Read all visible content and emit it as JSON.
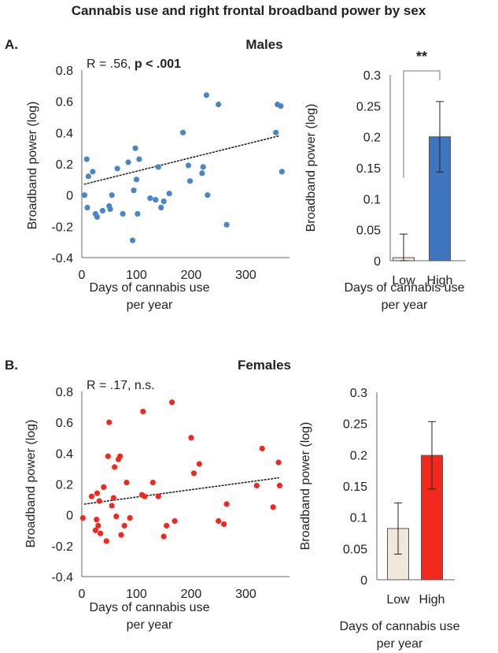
{
  "figure_title": "Cannabis use and right frontal broadband power by sex",
  "colors": {
    "male_point": "#4a86c6",
    "female_point": "#f0281e",
    "low_bar": "#f1e8dc",
    "male_high_bar": "#3f74bf",
    "female_high_bar": "#f0281e"
  },
  "chart_data": [
    {
      "type": "scatter",
      "panel": "A.",
      "title": "Males",
      "stat_plain": "R = .56, ",
      "stat_bold": "p < .001",
      "xlabel": [
        "Days of cannabis use",
        "per year"
      ],
      "ylabel": "Broadband power (log)",
      "xlim": [
        0,
        380
      ],
      "ylim": [
        -0.4,
        0.8
      ],
      "xticks": [
        "0",
        "100",
        "200",
        "300"
      ],
      "xtick_values": [
        0,
        100,
        200,
        300
      ],
      "yticks": [
        "-0.4",
        "-0.2",
        "0",
        "0.2",
        "0.4",
        "0.6",
        "0.8"
      ],
      "ytick_values": [
        -0.4,
        -0.2,
        0,
        0.2,
        0.4,
        0.6,
        0.8
      ],
      "trendline": {
        "x": [
          5,
          362
        ],
        "y": [
          0.07,
          0.38
        ]
      },
      "points": [
        [
          5,
          0.0
        ],
        [
          9,
          0.23
        ],
        [
          10,
          -0.08
        ],
        [
          12,
          0.12
        ],
        [
          20,
          0.15
        ],
        [
          25,
          -0.12
        ],
        [
          28,
          -0.14
        ],
        [
          38,
          -0.1
        ],
        [
          50,
          -0.07
        ],
        [
          52,
          -0.09
        ],
        [
          55,
          0.0
        ],
        [
          65,
          0.17
        ],
        [
          75,
          -0.12
        ],
        [
          85,
          0.21
        ],
        [
          93,
          -0.29
        ],
        [
          95,
          0.03
        ],
        [
          98,
          0.3
        ],
        [
          100,
          0.1
        ],
        [
          102,
          -0.12
        ],
        [
          105,
          0.23
        ],
        [
          125,
          -0.02
        ],
        [
          135,
          -0.03
        ],
        [
          140,
          0.18
        ],
        [
          145,
          -0.08
        ],
        [
          150,
          -0.04
        ],
        [
          160,
          0.01
        ],
        [
          185,
          0.4
        ],
        [
          195,
          0.19
        ],
        [
          198,
          0.09
        ],
        [
          220,
          0.14
        ],
        [
          222,
          0.18
        ],
        [
          228,
          0.64
        ],
        [
          230,
          0.0
        ],
        [
          250,
          0.58
        ],
        [
          265,
          -0.19
        ],
        [
          355,
          0.4
        ],
        [
          358,
          0.58
        ],
        [
          364,
          0.57
        ],
        [
          366,
          0.15
        ]
      ]
    },
    {
      "type": "bar",
      "panel": "A.",
      "significance": "**",
      "categories": [
        "Low",
        "High"
      ],
      "values": [
        0.005,
        0.2
      ],
      "errors": [
        0.038,
        0.057
      ],
      "ylim": [
        0,
        0.3
      ],
      "yticks": [
        "0",
        "0.05",
        "0.1",
        "0.15",
        "0.2",
        "0.25",
        "0.3"
      ],
      "ytick_values": [
        0,
        0.05,
        0.1,
        0.15,
        0.2,
        0.25,
        0.3
      ],
      "xlabel": [
        "Days of cannabis use",
        "per year"
      ],
      "ylabel": "Broadband power (log)"
    },
    {
      "type": "scatter",
      "panel": "B.",
      "title": "Females",
      "stat_plain": "R = .17, n.s.",
      "stat_bold": "",
      "xlabel": [
        "Days of cannabis use",
        "per year"
      ],
      "ylabel": "Broadband power (log)",
      "xlim": [
        0,
        380
      ],
      "ylim": [
        -0.4,
        0.8
      ],
      "xticks": [
        "0",
        "100",
        "200",
        "300"
      ],
      "xtick_values": [
        0,
        100,
        200,
        300
      ],
      "yticks": [
        "-0.4",
        "-0.2",
        "0",
        "0.2",
        "0.4",
        "0.6",
        "0.8"
      ],
      "ytick_values": [
        -0.4,
        -0.2,
        0,
        0.2,
        0.4,
        0.6,
        0.8
      ],
      "trendline": {
        "x": [
          5,
          360
        ],
        "y": [
          0.07,
          0.24
        ]
      },
      "points": [
        [
          2,
          -0.02
        ],
        [
          18,
          0.12
        ],
        [
          25,
          -0.1
        ],
        [
          27,
          -0.03
        ],
        [
          28,
          0.14
        ],
        [
          30,
          -0.07
        ],
        [
          32,
          0.09
        ],
        [
          34,
          -0.12
        ],
        [
          40,
          0.18
        ],
        [
          45,
          -0.17
        ],
        [
          48,
          0.38
        ],
        [
          50,
          0.6
        ],
        [
          55,
          0.06
        ],
        [
          58,
          0.11
        ],
        [
          60,
          0.31
        ],
        [
          63,
          -0.01
        ],
        [
          67,
          0.36
        ],
        [
          70,
          0.38
        ],
        [
          72,
          -0.13
        ],
        [
          78,
          -0.07
        ],
        [
          82,
          0.21
        ],
        [
          88,
          -0.02
        ],
        [
          110,
          0.13
        ],
        [
          112,
          0.67
        ],
        [
          115,
          0.12
        ],
        [
          130,
          0.21
        ],
        [
          140,
          0.12
        ],
        [
          150,
          -0.14
        ],
        [
          155,
          -0.07
        ],
        [
          165,
          0.73
        ],
        [
          170,
          -0.04
        ],
        [
          200,
          0.5
        ],
        [
          205,
          0.27
        ],
        [
          215,
          0.33
        ],
        [
          250,
          -0.04
        ],
        [
          260,
          -0.06
        ],
        [
          265,
          0.07
        ],
        [
          320,
          0.19
        ],
        [
          330,
          0.43
        ],
        [
          350,
          0.05
        ],
        [
          360,
          0.34
        ],
        [
          362,
          0.19
        ]
      ]
    },
    {
      "type": "bar",
      "panel": "B.",
      "significance": "",
      "categories": [
        "Low",
        "High"
      ],
      "values": [
        0.082,
        0.199
      ],
      "errors": [
        0.041,
        0.054
      ],
      "ylim": [
        0,
        0.3
      ],
      "yticks": [
        "0",
        "0.05",
        "0.1",
        "0.15",
        "0.2",
        "0.25",
        "0.3"
      ],
      "ytick_values": [
        0,
        0.05,
        0.1,
        0.15,
        0.2,
        0.25,
        0.3
      ],
      "xlabel": [
        "Days of cannabis use",
        "per year"
      ],
      "ylabel": "Broadband power (log)"
    }
  ]
}
